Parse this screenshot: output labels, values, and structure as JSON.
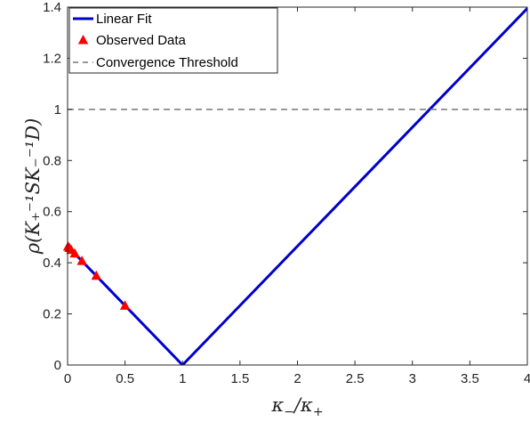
{
  "chart_data": {
    "type": "line",
    "xlabel_main": "κ",
    "xlabel_sub1": "−",
    "xlabel_mid": "/κ",
    "xlabel_sub2": "+",
    "ylabel": "ρ(K₊⁻¹SK₋⁻¹D)",
    "xlim": [
      0,
      4
    ],
    "ylim": [
      0,
      1.4
    ],
    "xticks": [
      0,
      0.5,
      1,
      1.5,
      2,
      2.5,
      3,
      3.5,
      4
    ],
    "xtick_labels": [
      "0",
      "0.5",
      "1",
      "1.5",
      "2",
      "2.5",
      "3",
      "3.5",
      "4"
    ],
    "yticks": [
      0,
      0.2,
      0.4,
      0.6,
      0.8,
      1,
      1.2,
      1.4
    ],
    "ytick_labels": [
      "0",
      "0.2",
      "0.4",
      "0.6",
      "0.8",
      "1",
      "1.2",
      "1.4"
    ],
    "grid": false,
    "legend_position": "top-left",
    "series": [
      {
        "name": "Linear Fit",
        "kind": "line",
        "color": "#0000cc",
        "x": [
          0,
          1,
          4
        ],
        "y": [
          0.465,
          0,
          1.395
        ]
      },
      {
        "name": "Observed Data",
        "kind": "scatter",
        "marker": "triangle",
        "color": "#ff0000",
        "x": [
          0.0039,
          0.0156,
          0.0313,
          0.0625,
          0.125,
          0.25,
          0.5
        ],
        "y": [
          0.463,
          0.458,
          0.45,
          0.436,
          0.407,
          0.349,
          0.232
        ]
      },
      {
        "name": "Convergence Threshold",
        "kind": "hline",
        "color": "#777777",
        "y": 1
      }
    ]
  }
}
